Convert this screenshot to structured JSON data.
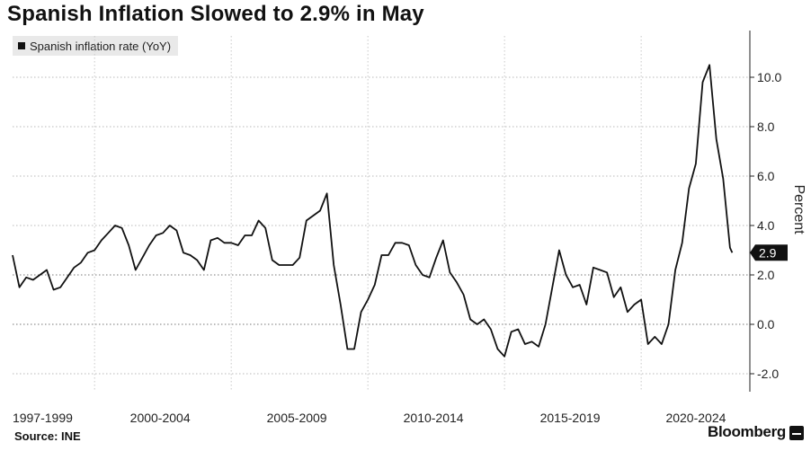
{
  "chart_data": {
    "type": "line",
    "title": "Spanish Inflation Slowed to 2.9% in May",
    "ylabel": "Percent",
    "xlabel": "",
    "legend": [
      "Spanish inflation rate (YoY)"
    ],
    "legend_position": "top-left",
    "ylim": [
      -3,
      11.8
    ],
    "yticks": [
      -2.0,
      0.0,
      2.0,
      4.0,
      6.0,
      8.0,
      10.0
    ],
    "ytick_labels": [
      "-2.0",
      "0.0",
      "2.0",
      "4.0",
      "6.0",
      "8.0",
      "10.0"
    ],
    "x_period_labels": [
      "1997-1999",
      "2000-2004",
      "2005-2009",
      "2010-2014",
      "2015-2019",
      "2020-2024"
    ],
    "grid": true,
    "last_value_label": "2.9",
    "series": [
      {
        "name": "Spanish inflation rate (YoY)",
        "x": [
          1997.0,
          1997.25,
          1997.5,
          1997.75,
          1998.0,
          1998.25,
          1998.5,
          1998.75,
          1999.0,
          1999.25,
          1999.5,
          1999.75,
          2000.0,
          2000.25,
          2000.5,
          2000.75,
          2001.0,
          2001.25,
          2001.5,
          2001.75,
          2002.0,
          2002.25,
          2002.5,
          2002.75,
          2003.0,
          2003.25,
          2003.5,
          2003.75,
          2004.0,
          2004.25,
          2004.5,
          2004.75,
          2005.0,
          2005.25,
          2005.5,
          2005.75,
          2006.0,
          2006.25,
          2006.5,
          2006.75,
          2007.0,
          2007.25,
          2007.5,
          2007.75,
          2008.0,
          2008.25,
          2008.5,
          2008.75,
          2009.0,
          2009.25,
          2009.5,
          2009.75,
          2010.0,
          2010.25,
          2010.5,
          2010.75,
          2011.0,
          2011.25,
          2011.5,
          2011.75,
          2012.0,
          2012.25,
          2012.5,
          2012.75,
          2013.0,
          2013.25,
          2013.5,
          2013.75,
          2014.0,
          2014.25,
          2014.5,
          2014.75,
          2015.0,
          2015.25,
          2015.5,
          2015.75,
          2016.0,
          2016.25,
          2016.5,
          2016.75,
          2017.0,
          2017.25,
          2017.5,
          2017.75,
          2018.0,
          2018.25,
          2018.5,
          2018.75,
          2019.0,
          2019.25,
          2019.5,
          2019.75,
          2020.0,
          2020.25,
          2020.5,
          2020.75,
          2021.0,
          2021.25,
          2021.5,
          2021.75,
          2022.0,
          2022.25,
          2022.5,
          2022.75,
          2023.0,
          2023.25,
          2023.33
        ],
        "values": [
          2.8,
          1.5,
          1.9,
          1.8,
          2.0,
          2.2,
          1.4,
          1.5,
          1.9,
          2.3,
          2.5,
          2.9,
          3.0,
          3.4,
          3.7,
          4.0,
          3.9,
          3.2,
          2.2,
          2.7,
          3.2,
          3.6,
          3.7,
          4.0,
          3.8,
          2.9,
          2.8,
          2.6,
          2.2,
          3.4,
          3.5,
          3.3,
          3.3,
          3.2,
          3.6,
          3.6,
          4.2,
          3.9,
          2.6,
          2.4,
          2.4,
          2.4,
          2.7,
          4.2,
          4.4,
          4.6,
          5.3,
          2.4,
          0.8,
          -1.0,
          -1.0,
          0.5,
          1.0,
          1.6,
          2.8,
          2.8,
          3.3,
          3.3,
          3.2,
          2.4,
          2.0,
          1.9,
          2.7,
          3.4,
          2.1,
          1.7,
          1.2,
          0.2,
          0.0,
          0.2,
          -0.2,
          -1.0,
          -1.3,
          -0.3,
          -0.2,
          -0.8,
          -0.7,
          -0.9,
          0.0,
          1.5,
          3.0,
          2.0,
          1.5,
          1.6,
          0.8,
          2.3,
          2.2,
          2.1,
          1.1,
          1.5,
          0.5,
          0.8,
          1.0,
          -0.8,
          -0.5,
          -0.8,
          0.0,
          2.2,
          3.3,
          5.5,
          6.5,
          9.8,
          10.5,
          7.5,
          5.9,
          3.1,
          2.9
        ]
      }
    ]
  }
}
